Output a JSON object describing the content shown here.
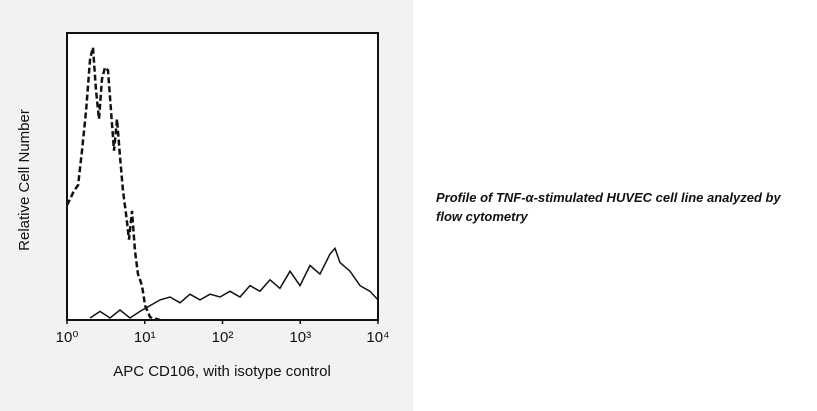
{
  "chart_data": {
    "type": "line",
    "caption": "Profile of TNF-α-stimulated HUVEC cell line analyzed by flow cytometry",
    "x_label": "APC CD106, with isotype control",
    "y_label": "Relative Cell Number",
    "xscale": "log",
    "xlim": [
      1,
      10000
    ],
    "xticks": [
      {
        "value": 1,
        "label": "10⁰"
      },
      {
        "value": 10,
        "label": "10¹"
      },
      {
        "value": 100,
        "label": "10²"
      },
      {
        "value": 1000,
        "label": "10³"
      },
      {
        "value": 10000,
        "label": "10⁴"
      }
    ],
    "ylim": [
      0,
      100
    ],
    "series": [
      {
        "color": "#111111",
        "dashed": true,
        "x": [
          1.0,
          1.09,
          1.23,
          1.39,
          1.56,
          1.76,
          1.98,
          2.16,
          2.36,
          2.58,
          2.82,
          3.08,
          3.37,
          3.68,
          4.02,
          4.4,
          4.81,
          5.25,
          5.74,
          6.27,
          6.86,
          7.49,
          8.19,
          9.22,
          10.1,
          11.7,
          15.7
        ],
        "values": [
          40,
          42,
          45,
          47,
          59,
          73,
          91,
          95,
          80,
          70,
          84,
          88,
          87,
          73,
          59,
          70,
          57,
          45,
          37,
          28,
          38,
          24,
          16,
          12,
          5,
          1,
          0
        ]
      },
      {
        "color": "#111111",
        "dashed": false,
        "x": [
          1.98,
          2.66,
          3.57,
          4.81,
          6.46,
          8.69,
          11.7,
          15.7,
          21.1,
          28.4,
          38.2,
          51.4,
          69.0,
          92.9,
          125,
          168,
          226,
          303,
          408,
          548,
          738,
          993,
          1334,
          1795,
          2415,
          2798,
          3243,
          4363,
          5866,
          7889,
          10000
        ],
        "values": [
          0.7,
          3,
          0.7,
          3.5,
          0.7,
          3,
          5,
          7,
          8,
          6,
          9,
          7,
          9,
          8,
          10,
          8,
          12,
          10,
          14,
          11,
          17,
          12,
          19,
          16,
          23,
          25,
          20,
          17,
          12,
          10,
          7
        ]
      }
    ]
  }
}
